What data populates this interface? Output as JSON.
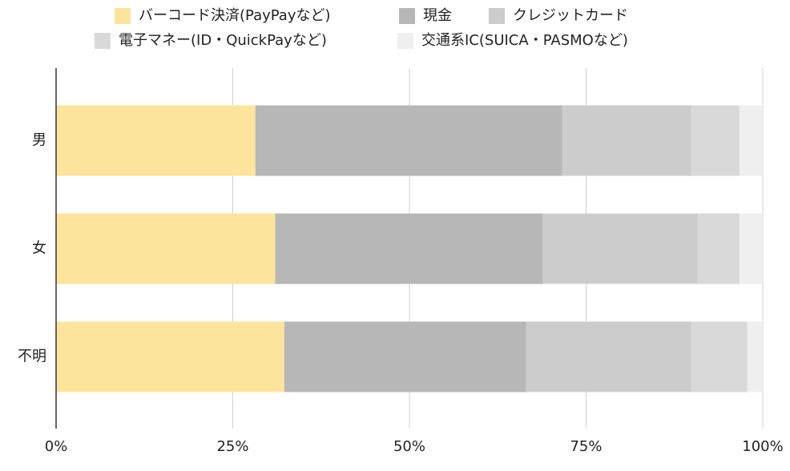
{
  "chart_data": {
    "type": "stacked-bar-horizontal",
    "categories": [
      "男",
      "女",
      "不明"
    ],
    "series": [
      {
        "name": "バーコード決済(PayPayなど)",
        "color": "#fde49c",
        "values": [
          28.2,
          31.0,
          32.3
        ]
      },
      {
        "name": "現金",
        "color": "#b7b7b7",
        "values": [
          43.4,
          37.9,
          34.2
        ]
      },
      {
        "name": "クレジットカード",
        "color": "#cccccc",
        "values": [
          18.3,
          21.9,
          23.4
        ]
      },
      {
        "name": "電子マネー(ID・QuickPayなど)",
        "color": "#d9d9d9",
        "values": [
          6.8,
          5.9,
          7.9
        ]
      },
      {
        "name": "交通系IC(SUICA・PASMOなど)",
        "color": "#efefef",
        "values": [
          3.3,
          3.3,
          2.2
        ]
      }
    ],
    "xlim": [
      0,
      100
    ],
    "xticks": [
      {
        "value": 0,
        "label": "0%"
      },
      {
        "value": 25,
        "label": "25%"
      },
      {
        "value": 50,
        "label": "50%"
      },
      {
        "value": 75,
        "label": "75%"
      },
      {
        "value": 100,
        "label": "100%"
      }
    ],
    "grid": true,
    "legend": "top"
  }
}
